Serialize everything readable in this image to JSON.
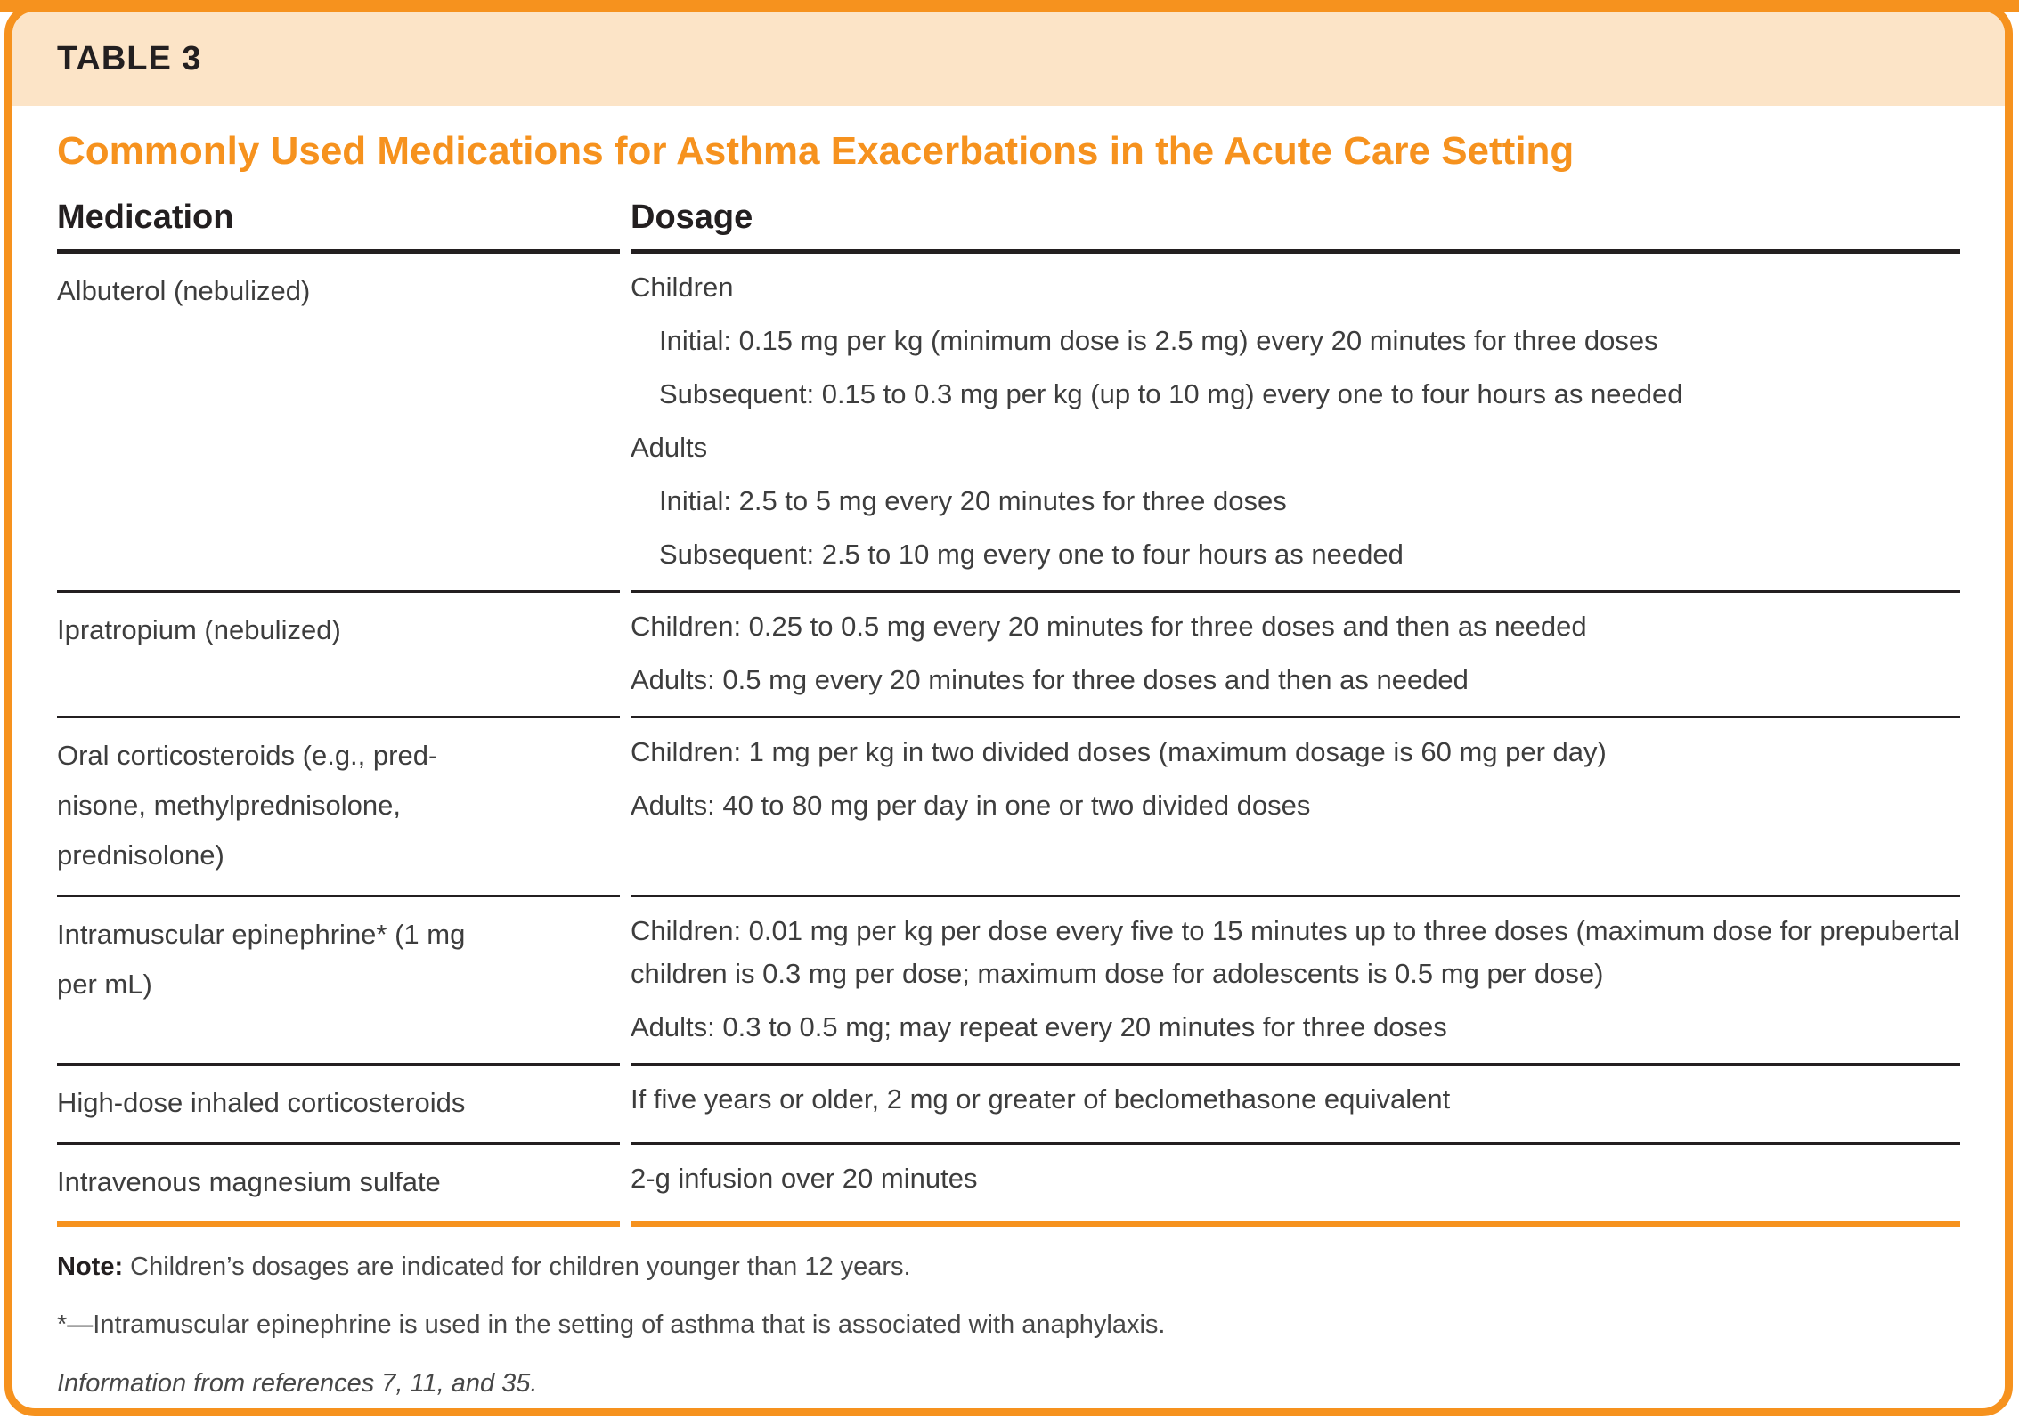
{
  "table_label": "TABLE 3",
  "title": "Commonly Used Medications for Asthma Exacerbations in the Acute Care Setting",
  "columns": {
    "medication": "Medication",
    "dosage": "Dosage"
  },
  "rows": [
    {
      "medication_lines": [
        "Albuterol (nebulized)"
      ],
      "dosage": [
        {
          "text": "Children",
          "indent": false
        },
        {
          "text": "Initial: 0.15 mg per kg (minimum dose is 2.5 mg) every 20 minutes for three doses",
          "indent": true
        },
        {
          "text": "Subsequent: 0.15 to 0.3 mg per kg (up to 10 mg) every one to four hours as needed",
          "indent": true
        },
        {
          "text": "Adults",
          "indent": false
        },
        {
          "text": "Initial: 2.5 to 5 mg every 20 minutes for three doses",
          "indent": true
        },
        {
          "text": "Subsequent: 2.5 to 10 mg every one to four hours as needed",
          "indent": true
        }
      ]
    },
    {
      "medication_lines": [
        "Ipratropium (nebulized)"
      ],
      "dosage": [
        {
          "text": "Children: 0.25 to 0.5 mg every 20 minutes for three doses and then as needed",
          "indent": false
        },
        {
          "text": "Adults: 0.5 mg every 20 minutes for three doses and then as needed",
          "indent": false
        }
      ]
    },
    {
      "medication_lines": [
        "Oral corticosteroids (e.g., pred-",
        "nisone, methylprednisolone,",
        "prednisolone)"
      ],
      "dosage": [
        {
          "text": "Children: 1 mg per kg in two divided doses (maximum dosage is 60 mg per day)",
          "indent": false
        },
        {
          "text": "Adults: 40 to 80 mg per day in one or two divided doses",
          "indent": false
        }
      ]
    },
    {
      "medication_lines": [
        "Intramuscular epinephrine* (1 mg",
        "per mL)"
      ],
      "dosage": [
        {
          "text": "Children: 0.01 mg per kg per dose every five to 15 minutes up to three doses (maximum dose for prepubertal children is 0.3 mg per dose; maximum dose for adolescents is 0.5 mg per dose)",
          "indent": false
        },
        {
          "text": "Adults: 0.3 to 0.5 mg; may repeat every 20 minutes for three doses",
          "indent": false
        }
      ]
    },
    {
      "medication_lines": [
        "High-dose inhaled corticosteroids"
      ],
      "dosage": [
        {
          "text": "If five years or older, 2 mg or greater of beclomethasone equivalent",
          "indent": false
        }
      ]
    },
    {
      "medication_lines": [
        "Intravenous magnesium sulfate"
      ],
      "dosage": [
        {
          "text": "2-g infusion over 20 minutes",
          "indent": false
        }
      ]
    }
  ],
  "footer": {
    "note_label": "Note:",
    "note_text": " Children’s dosages are indicated for children younger than 12 years.",
    "footnote": "*—Intramuscular epinephrine is used in the setting of asthma that is associated with anaphylaxis.",
    "source": "Information from references 7, 11, and 35."
  },
  "colors": {
    "accent_orange": "#F6921E",
    "header_peach": "#FCE4C7",
    "rule_black": "#231F20"
  }
}
